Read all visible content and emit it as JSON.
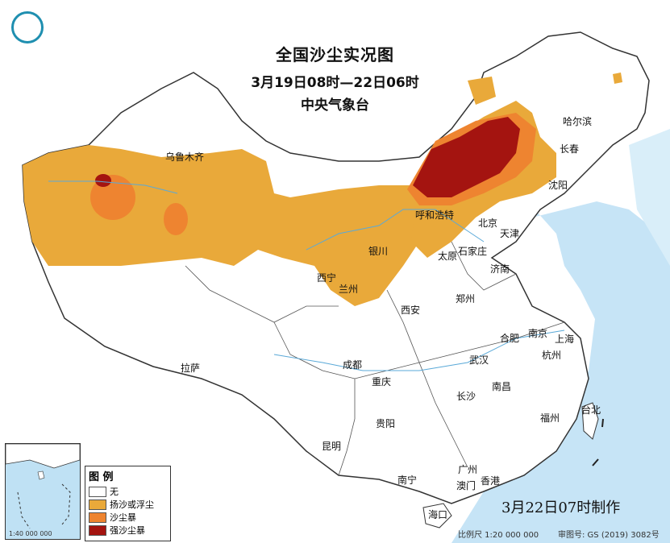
{
  "title": {
    "line1": "全国沙尘实况图",
    "line2": "3月19日08时—22日06时",
    "line3": "中央气象台"
  },
  "legend": {
    "title": "图 例",
    "items": [
      {
        "label": "无",
        "color": "#ffffff"
      },
      {
        "label": "扬沙或浮尘",
        "color": "#e9a93a"
      },
      {
        "label": "沙尘暴",
        "color": "#ee8430"
      },
      {
        "label": "强沙尘暴",
        "color": "#a41410"
      }
    ]
  },
  "cities": {
    "urumqi": "乌鲁木齐",
    "harbin": "哈尔滨",
    "changchun": "长春",
    "shenyang": "沈阳",
    "hohhot": "呼和浩特",
    "beijing": "北京",
    "tianjin": "天津",
    "shijiazhuang": "石家庄",
    "taiyuan": "太原",
    "jinan": "济南",
    "yinchuan": "银川",
    "xining": "西宁",
    "lanzhou": "兰州",
    "xian": "西安",
    "zhengzhou": "郑州",
    "hefei": "合肥",
    "nanjing": "南京",
    "shanghai": "上海",
    "hangzhou": "杭州",
    "chengdu": "成都",
    "chongqing": "重庆",
    "wuhan": "武汉",
    "lhasa": "拉萨",
    "changsha": "长沙",
    "nanchang": "南昌",
    "fuzhou": "福州",
    "taipei": "台北",
    "guiyang": "贵阳",
    "kunming": "昆明",
    "guangzhou": "广州",
    "nanning": "南宁",
    "macao": "澳门",
    "hongkong": "香港",
    "haikou": "海口"
  },
  "made_time": "3月22日07时制作",
  "footer": {
    "scale": "比例尺 1:20 000 000",
    "approval": "审图号: GS (2019) 3082号"
  },
  "inset": {
    "scale": "1:40 000 000"
  }
}
